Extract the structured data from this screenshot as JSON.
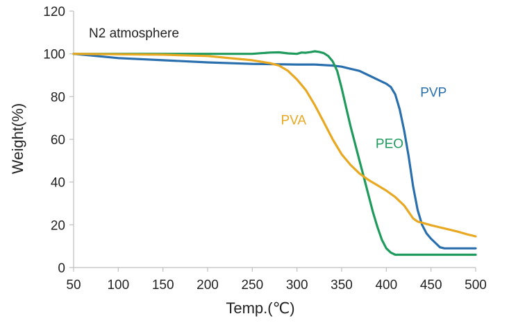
{
  "chart_data": {
    "type": "line",
    "title": "",
    "annotation": "N2 atmosphere",
    "xlabel": "Temp.(℃)",
    "ylabel": "Weight(%)",
    "xlim": [
      50,
      500
    ],
    "ylim": [
      0,
      120
    ],
    "xticks": [
      50,
      100,
      150,
      200,
      250,
      300,
      350,
      400,
      450,
      500
    ],
    "yticks": [
      0,
      20,
      40,
      60,
      80,
      100,
      120
    ],
    "grid": false,
    "series": [
      {
        "name": "PVP",
        "color": "#2a6fad",
        "label_at": [
          438,
          80
        ],
        "points": [
          [
            50,
            100
          ],
          [
            100,
            98
          ],
          [
            150,
            97
          ],
          [
            200,
            96
          ],
          [
            250,
            95.3
          ],
          [
            300,
            95
          ],
          [
            320,
            95
          ],
          [
            340,
            94.5
          ],
          [
            350,
            94
          ],
          [
            360,
            93
          ],
          [
            370,
            92
          ],
          [
            380,
            90
          ],
          [
            390,
            88
          ],
          [
            400,
            86
          ],
          [
            405,
            84.5
          ],
          [
            410,
            81
          ],
          [
            415,
            74
          ],
          [
            420,
            64
          ],
          [
            425,
            52
          ],
          [
            430,
            38
          ],
          [
            435,
            27
          ],
          [
            440,
            20
          ],
          [
            445,
            16
          ],
          [
            450,
            13.5
          ],
          [
            455,
            11.5
          ],
          [
            460,
            9.5
          ],
          [
            465,
            9
          ],
          [
            470,
            9
          ],
          [
            500,
            9
          ]
        ]
      },
      {
        "name": "PEO",
        "color": "#1e9a5c",
        "label_at": [
          388,
          56
        ],
        "points": [
          [
            50,
            100
          ],
          [
            100,
            100
          ],
          [
            150,
            100
          ],
          [
            200,
            100
          ],
          [
            240,
            100
          ],
          [
            250,
            100
          ],
          [
            260,
            100.3
          ],
          [
            270,
            100.6
          ],
          [
            280,
            100.7
          ],
          [
            290,
            100.2
          ],
          [
            300,
            100
          ],
          [
            305,
            100.6
          ],
          [
            310,
            100.5
          ],
          [
            315,
            100.8
          ],
          [
            320,
            101.2
          ],
          [
            325,
            100.9
          ],
          [
            330,
            100.3
          ],
          [
            335,
            99
          ],
          [
            340,
            96.5
          ],
          [
            345,
            92
          ],
          [
            350,
            84
          ],
          [
            355,
            75
          ],
          [
            360,
            66
          ],
          [
            365,
            58
          ],
          [
            370,
            50
          ],
          [
            375,
            42
          ],
          [
            380,
            34
          ],
          [
            385,
            26
          ],
          [
            390,
            19
          ],
          [
            395,
            13
          ],
          [
            400,
            9
          ],
          [
            405,
            7
          ],
          [
            410,
            6
          ],
          [
            420,
            6
          ],
          [
            450,
            6
          ],
          [
            500,
            6
          ]
        ]
      },
      {
        "name": "PVA",
        "color": "#e8a821",
        "label_at": [
          282,
          67
        ],
        "points": [
          [
            50,
            100
          ],
          [
            100,
            99.8
          ],
          [
            150,
            99.6
          ],
          [
            200,
            99
          ],
          [
            230,
            97.8
          ],
          [
            250,
            97
          ],
          [
            270,
            95.6
          ],
          [
            280,
            94.5
          ],
          [
            290,
            92
          ],
          [
            300,
            88
          ],
          [
            310,
            83
          ],
          [
            320,
            76
          ],
          [
            330,
            68
          ],
          [
            340,
            60
          ],
          [
            350,
            53
          ],
          [
            360,
            48
          ],
          [
            370,
            44
          ],
          [
            380,
            41
          ],
          [
            390,
            38.5
          ],
          [
            400,
            36
          ],
          [
            410,
            33
          ],
          [
            420,
            29
          ],
          [
            425,
            26
          ],
          [
            430,
            23
          ],
          [
            435,
            21.5
          ],
          [
            440,
            21
          ],
          [
            450,
            19.8
          ],
          [
            460,
            18.8
          ],
          [
            470,
            17.8
          ],
          [
            480,
            16.8
          ],
          [
            490,
            15.6
          ],
          [
            500,
            14.6
          ]
        ]
      }
    ]
  }
}
